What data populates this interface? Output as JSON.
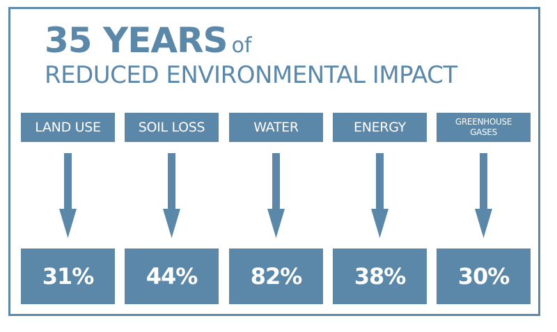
{
  "title": {
    "main": "35 YEARS",
    "of": "of",
    "subtitle": "REDUCED ENVIRONMENTAL IMPACT"
  },
  "colors": {
    "accent": "#5b87a8",
    "text_on_accent": "#ffffff",
    "background": "#ffffff"
  },
  "metrics": [
    {
      "label": "LAND USE",
      "value": "31%",
      "direction": "down-arrow-icon"
    },
    {
      "label": "SOIL LOSS",
      "value": "44%",
      "direction": "down-arrow-icon"
    },
    {
      "label": "WATER",
      "value": "82%",
      "direction": "down-arrow-icon"
    },
    {
      "label": "ENERGY",
      "value": "38%",
      "direction": "down-arrow-icon"
    },
    {
      "label": "GREENHOUSE GASES",
      "value": "30%",
      "direction": "down-arrow-icon"
    }
  ]
}
